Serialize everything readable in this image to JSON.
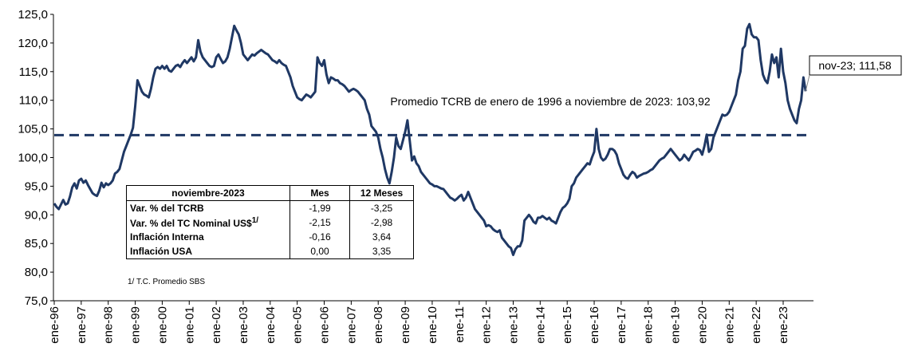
{
  "chart_data": {
    "type": "line",
    "categories": [
      "ene-96",
      null,
      null,
      null,
      null,
      null,
      null,
      null,
      null,
      null,
      null,
      null,
      "ene-97",
      null,
      null,
      null,
      null,
      null,
      null,
      null,
      null,
      null,
      null,
      null,
      "ene-98",
      null,
      null,
      null,
      null,
      null,
      null,
      null,
      null,
      null,
      null,
      null,
      "ene-99",
      null,
      null,
      null,
      null,
      null,
      null,
      null,
      null,
      null,
      null,
      null,
      "ene-00",
      null,
      null,
      null,
      null,
      null,
      null,
      null,
      null,
      null,
      null,
      null,
      "ene-01",
      null,
      null,
      null,
      null,
      null,
      null,
      null,
      null,
      null,
      null,
      null,
      "ene-02",
      null,
      null,
      null,
      null,
      null,
      null,
      null,
      null,
      null,
      null,
      null,
      "ene-03",
      null,
      null,
      null,
      null,
      null,
      null,
      null,
      null,
      null,
      null,
      null,
      "ene-04",
      null,
      null,
      null,
      null,
      null,
      null,
      null,
      null,
      null,
      null,
      null,
      "ene-05",
      null,
      null,
      null,
      null,
      null,
      null,
      null,
      null,
      null,
      null,
      null,
      "ene-06",
      null,
      null,
      null,
      null,
      null,
      null,
      null,
      null,
      null,
      null,
      null,
      "ene-07",
      null,
      null,
      null,
      null,
      null,
      null,
      null,
      null,
      null,
      null,
      null,
      "ene-08",
      null,
      null,
      null,
      null,
      null,
      null,
      null,
      null,
      null,
      null,
      null,
      "ene-09",
      null,
      null,
      null,
      null,
      null,
      null,
      null,
      null,
      null,
      null,
      null,
      "ene-10",
      null,
      null,
      null,
      null,
      null,
      null,
      null,
      null,
      null,
      null,
      null,
      "ene-11",
      null,
      null,
      null,
      null,
      null,
      null,
      null,
      null,
      null,
      null,
      null,
      "ene-12",
      null,
      null,
      null,
      null,
      null,
      null,
      null,
      null,
      null,
      null,
      null,
      "ene-13",
      null,
      null,
      null,
      null,
      null,
      null,
      null,
      null,
      null,
      null,
      null,
      "ene-14",
      null,
      null,
      null,
      null,
      null,
      null,
      null,
      null,
      null,
      null,
      null,
      "ene-15",
      null,
      null,
      null,
      null,
      null,
      null,
      null,
      null,
      null,
      null,
      null,
      "ene-16",
      null,
      null,
      null,
      null,
      null,
      null,
      null,
      null,
      null,
      null,
      null,
      "ene-17",
      null,
      null,
      null,
      null,
      null,
      null,
      null,
      null,
      null,
      null,
      null,
      "ene-18",
      null,
      null,
      null,
      null,
      null,
      null,
      null,
      null,
      null,
      null,
      null,
      "ene-19",
      null,
      null,
      null,
      null,
      null,
      null,
      null,
      null,
      null,
      null,
      null,
      "ene-20",
      null,
      null,
      null,
      null,
      null,
      null,
      null,
      null,
      null,
      null,
      null,
      "ene-21",
      null,
      null,
      null,
      null,
      null,
      null,
      null,
      null,
      null,
      null,
      null,
      "ene-22",
      null,
      null,
      null,
      null,
      null,
      null,
      null,
      null,
      null,
      null,
      null,
      "ene-23",
      null,
      null,
      null,
      null,
      null,
      null,
      null,
      null,
      null,
      null
    ],
    "series": [
      {
        "color": "#1f3864",
        "values": [
          92.0,
          91.4,
          91.0,
          91.8,
          92.6,
          91.8,
          92.0,
          93.2,
          94.8,
          95.5,
          94.6,
          96.0,
          96.3,
          95.6,
          96.0,
          95.2,
          94.5,
          93.8,
          93.5,
          93.3,
          94.2,
          95.6,
          94.8,
          95.5,
          95.2,
          95.5,
          96.0,
          97.2,
          97.5,
          98.0,
          99.5,
          101.0,
          102.0,
          103.0,
          104.0,
          105.2,
          109.0,
          113.5,
          112.5,
          111.5,
          111.0,
          110.8,
          110.5,
          112.0,
          114.0,
          115.5,
          115.8,
          115.5,
          116.0,
          115.5,
          116.0,
          115.2,
          115.0,
          115.5,
          116.0,
          116.2,
          115.8,
          116.5,
          117.0,
          116.5,
          117.0,
          117.5,
          116.8,
          117.5,
          120.5,
          118.5,
          117.5,
          117.0,
          116.5,
          116.0,
          115.8,
          116.0,
          117.5,
          118.0,
          117.2,
          116.5,
          116.8,
          117.5,
          119.0,
          121.0,
          123.0,
          122.2,
          121.5,
          120.0,
          118.0,
          117.5,
          117.0,
          117.5,
          118.0,
          117.8,
          118.2,
          118.5,
          118.8,
          118.5,
          118.2,
          118.0,
          117.5,
          117.0,
          116.8,
          116.5,
          117.0,
          116.5,
          116.2,
          116.0,
          115.0,
          114.0,
          112.5,
          111.5,
          110.5,
          110.2,
          110.0,
          110.5,
          111.0,
          110.8,
          110.5,
          111.0,
          111.5,
          117.5,
          116.5,
          116.0,
          117.0,
          114.5,
          113.0,
          114.0,
          113.8,
          113.5,
          113.5,
          113.0,
          112.8,
          112.5,
          112.0,
          111.5,
          111.8,
          112.0,
          111.8,
          111.5,
          111.0,
          110.5,
          110.0,
          108.5,
          107.5,
          105.5,
          105.0,
          104.5,
          103.5,
          101.5,
          100.0,
          98.0,
          96.5,
          95.5,
          97.5,
          100.0,
          103.5,
          102.0,
          101.5,
          103.0,
          104.5,
          106.5,
          103.0,
          99.5,
          100.2,
          99.0,
          98.5,
          97.5,
          97.0,
          96.5,
          96.0,
          95.5,
          95.3,
          95.0,
          95.0,
          94.8,
          94.6,
          94.5,
          94.0,
          93.5,
          93.0,
          92.8,
          92.5,
          92.8,
          93.2,
          93.5,
          92.5,
          93.0,
          94.0,
          93.0,
          92.0,
          91.0,
          90.5,
          90.0,
          89.5,
          89.0,
          88.0,
          88.2,
          88.0,
          87.5,
          87.2,
          87.0,
          87.3,
          86.0,
          85.5,
          85.0,
          84.5,
          84.2,
          83.0,
          84.0,
          84.5,
          84.5,
          85.5,
          89.0,
          89.5,
          90.0,
          89.5,
          88.8,
          88.5,
          89.5,
          89.5,
          89.8,
          89.5,
          89.2,
          89.5,
          89.0,
          88.8,
          88.5,
          89.5,
          90.5,
          91.2,
          91.5,
          92.0,
          92.8,
          95.0,
          95.5,
          96.5,
          97.0,
          97.5,
          98.0,
          98.5,
          99.0,
          98.8,
          100.0,
          101.0,
          105.0,
          101.5,
          100.0,
          99.5,
          99.8,
          100.5,
          101.5,
          101.5,
          101.2,
          100.5,
          99.0,
          98.0,
          97.0,
          96.5,
          96.3,
          97.0,
          97.5,
          97.2,
          96.5,
          96.8,
          97.0,
          97.2,
          97.3,
          97.5,
          97.8,
          98.0,
          98.5,
          99.0,
          99.5,
          99.8,
          100.0,
          100.5,
          101.0,
          101.5,
          101.0,
          100.5,
          100.0,
          99.5,
          99.8,
          100.5,
          100.0,
          99.5,
          100.2,
          101.0,
          101.2,
          101.5,
          101.3,
          100.5,
          102.0,
          104.0,
          101.0,
          101.5,
          103.5,
          104.5,
          105.5,
          106.5,
          107.5,
          107.3,
          107.5,
          108.0,
          109.0,
          110.0,
          111.0,
          113.5,
          115.0,
          119.0,
          119.5,
          122.5,
          123.3,
          121.5,
          121.0,
          121.0,
          120.5,
          117.0,
          114.5,
          113.5,
          113.0,
          115.0,
          118.0,
          116.5,
          117.5,
          114.0,
          119.0,
          115.0,
          113.0,
          110.0,
          108.5,
          107.5,
          106.5,
          106.0,
          108.5,
          110.0,
          114.0,
          111.58
        ]
      }
    ],
    "ylim": [
      75,
      125
    ],
    "yticks": [
      {
        "value": 75,
        "label": "75,0"
      },
      {
        "value": 80,
        "label": "80,0"
      },
      {
        "value": 85,
        "label": "85,0"
      },
      {
        "value": 90,
        "label": "90,0"
      },
      {
        "value": 95,
        "label": "95,0"
      },
      {
        "value": 100,
        "label": "100,0"
      },
      {
        "value": 105,
        "label": "105,0"
      },
      {
        "value": 110,
        "label": "110,0"
      },
      {
        "value": 115,
        "label": "115,0"
      },
      {
        "value": 120,
        "label": "120,0"
      },
      {
        "value": 125,
        "label": "125,0"
      }
    ],
    "reference_line": {
      "value": 103.92,
      "label": "Promedio TCRB de enero de 1996 a noviembre de 2023: 103,92",
      "color": "#1f3864"
    },
    "callout": "nov-23; 111,58",
    "table": {
      "header": [
        "noviembre-2023",
        "Mes",
        "12 Meses"
      ],
      "rows": [
        {
          "label": "Var. % del TCRB",
          "cells": [
            "-1,99",
            "-3,25"
          ]
        },
        {
          "label": "Var. % del TC Nominal US$",
          "note": "1/",
          "cells": [
            "-2,15",
            "-2,98"
          ]
        },
        {
          "label": "Inflación Interna",
          "cells": [
            "-0,16",
            "3,64"
          ]
        },
        {
          "label": "Inflación USA",
          "cells": [
            "0,00",
            "3,35"
          ]
        }
      ],
      "footnote": "1/ T.C. Promedio SBS"
    }
  }
}
